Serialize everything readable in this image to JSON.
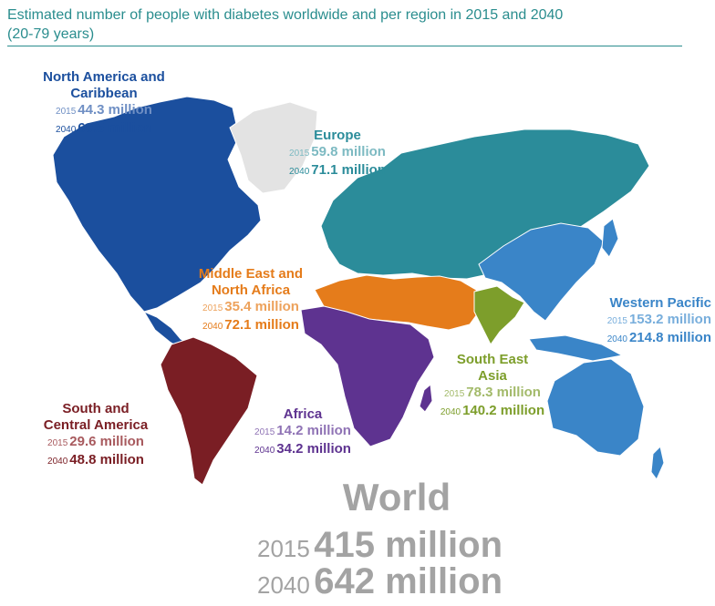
{
  "title_line1": "Estimated number of people with diabetes worldwide and per region in 2015 and 2040",
  "title_line2": "(20-79 years)",
  "colors": {
    "north_america": "#1b4f9e",
    "north_america_light": "#6f8fc4",
    "europe": "#2b8c9a",
    "europe_light": "#7dbac2",
    "mena": "#e57c1b",
    "mena_light": "#eda25c",
    "south_america": "#7a1e24",
    "south_america_light": "#a85a5e",
    "africa": "#5e3390",
    "africa_light": "#8f73b5",
    "sea": "#7d9e2b",
    "sea_light": "#a3ba6a",
    "western_pacific": "#3a85c8",
    "western_pacific_light": "#78aedc",
    "world": "#a3a3a3",
    "greenland": "#e3e3e3"
  },
  "regions": {
    "north_america": {
      "name_line1": "North America and",
      "name_line2": "Caribbean",
      "year_2015": "2015",
      "value_2015": "44.3 million",
      "year_2040": "2040",
      "value_2040": "60.5 million"
    },
    "europe": {
      "name": "Europe",
      "year_2015": "2015",
      "value_2015": "59.8 million",
      "year_2040": "2040",
      "value_2040": "71.1 million"
    },
    "mena": {
      "name_line1": "Middle East and",
      "name_line2": "North Africa",
      "year_2015": "2015",
      "value_2015": "35.4 million",
      "year_2040": "2040",
      "value_2040": "72.1 million"
    },
    "western_pacific": {
      "name": "Western Pacific",
      "year_2015": "2015",
      "value_2015": "153.2 million",
      "year_2040": "2040",
      "value_2040": "214.8 million"
    },
    "sea": {
      "name_line1": "South East",
      "name_line2": "Asia",
      "year_2015": "2015",
      "value_2015": "78.3 million",
      "year_2040": "2040",
      "value_2040": "140.2 million"
    },
    "south_america": {
      "name_line1": "South and",
      "name_line2": "Central America",
      "year_2015": "2015",
      "value_2015": "29.6 million",
      "year_2040": "2040",
      "value_2040": "48.8 million"
    },
    "africa": {
      "name": "Africa",
      "year_2015": "2015",
      "value_2015": "14.2 million",
      "year_2040": "2040",
      "value_2040": "34.2 million"
    }
  },
  "world": {
    "name": "World",
    "year_2015": "2015",
    "value_2015": "415 million",
    "year_2040": "2040",
    "value_2040": "642 million"
  }
}
